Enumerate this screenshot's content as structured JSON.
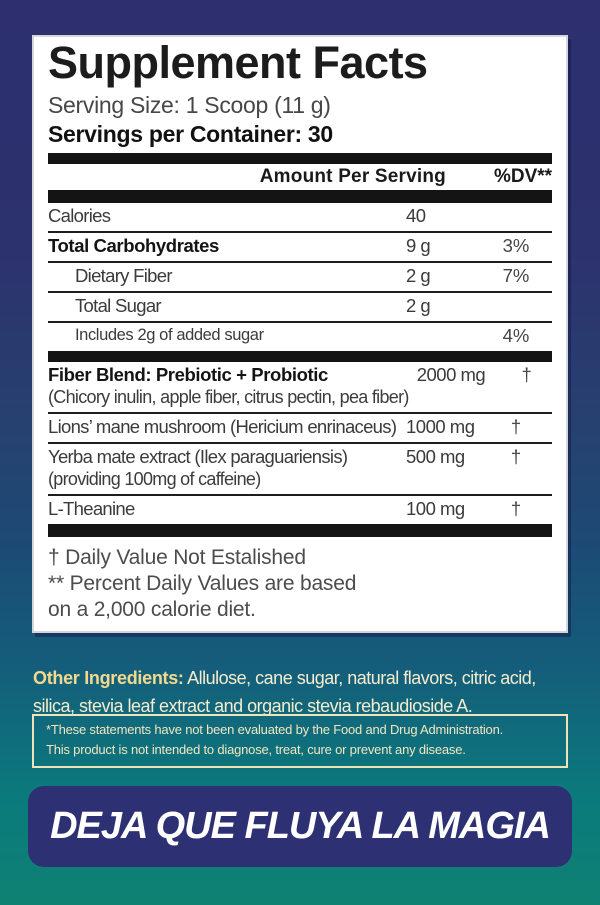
{
  "colors": {
    "bg_top": "#2d2f6e",
    "bg_mid": "#1d4a74",
    "bg_bottom": "#0f8173",
    "panel_bg": "#ffffff",
    "ink": "#1b1b1b",
    "accent_yellow": "#f3d98e",
    "cream": "#f5ecce",
    "banner_bg": "#2d3173"
  },
  "label": {
    "title": "Supplement Facts",
    "serving_size": "Serving Size: 1 Scoop (11 g)",
    "servings_per_container": "Servings per Container: 30",
    "columns": {
      "amount_header": "Amount Per Serving",
      "dv_header": "%DV**"
    },
    "sections": [
      {
        "rows": [
          {
            "name": "Calories",
            "amount": "40",
            "dv": "",
            "style": ""
          },
          {
            "name": "Total Carbohydrates",
            "amount": "9 g",
            "dv": "3%",
            "style": "bold"
          },
          {
            "name": "Dietary Fiber",
            "amount": "2 g",
            "dv": "7%",
            "style": "indent"
          },
          {
            "name": "Total Sugar",
            "amount": "2 g",
            "dv": "",
            "style": "indent"
          },
          {
            "name": "Includes 2g of added sugar",
            "amount": "",
            "dv": "4%",
            "style": "indent small"
          }
        ]
      },
      {
        "rows": [
          {
            "name": "Fiber Blend: Prebiotic + Probiotic",
            "sub": "(Chicory inulin, apple fiber, citrus pectin, pea fiber)",
            "amount": "2000 mg",
            "dv": "†",
            "style": "bold"
          },
          {
            "name": "Lions’ mane mushroom (Hericium enrinaceus)",
            "amount": "1000 mg",
            "dv": "†",
            "style": ""
          },
          {
            "name": "Yerba mate extract (Ilex paraguariensis)",
            "sub": "(providing 100mg of caffeine)",
            "amount": "500 mg",
            "dv": "†",
            "style": ""
          },
          {
            "name": "L-Theanine",
            "amount": "100 mg",
            "dv": "†",
            "style": ""
          }
        ]
      }
    ],
    "footnotes": [
      "† Daily Value Not Estalished",
      "** Percent Daily Values are based",
      "on a 2,000 calorie diet."
    ]
  },
  "other_ingredients": {
    "label": "Other Ingredients:",
    "text": " Allulose, cane sugar, natural flavors, citric acid, silica, stevia leaf extract and organic stevia rebaudioside A."
  },
  "disclaimer_lines": [
    "*These statements have not been evaluated by the Food and Drug Administration.",
    "This product is not intended to diagnose, treat, cure or prevent any disease."
  ],
  "banner_text": "DEJA QUE FLUYA LA MAGIA"
}
